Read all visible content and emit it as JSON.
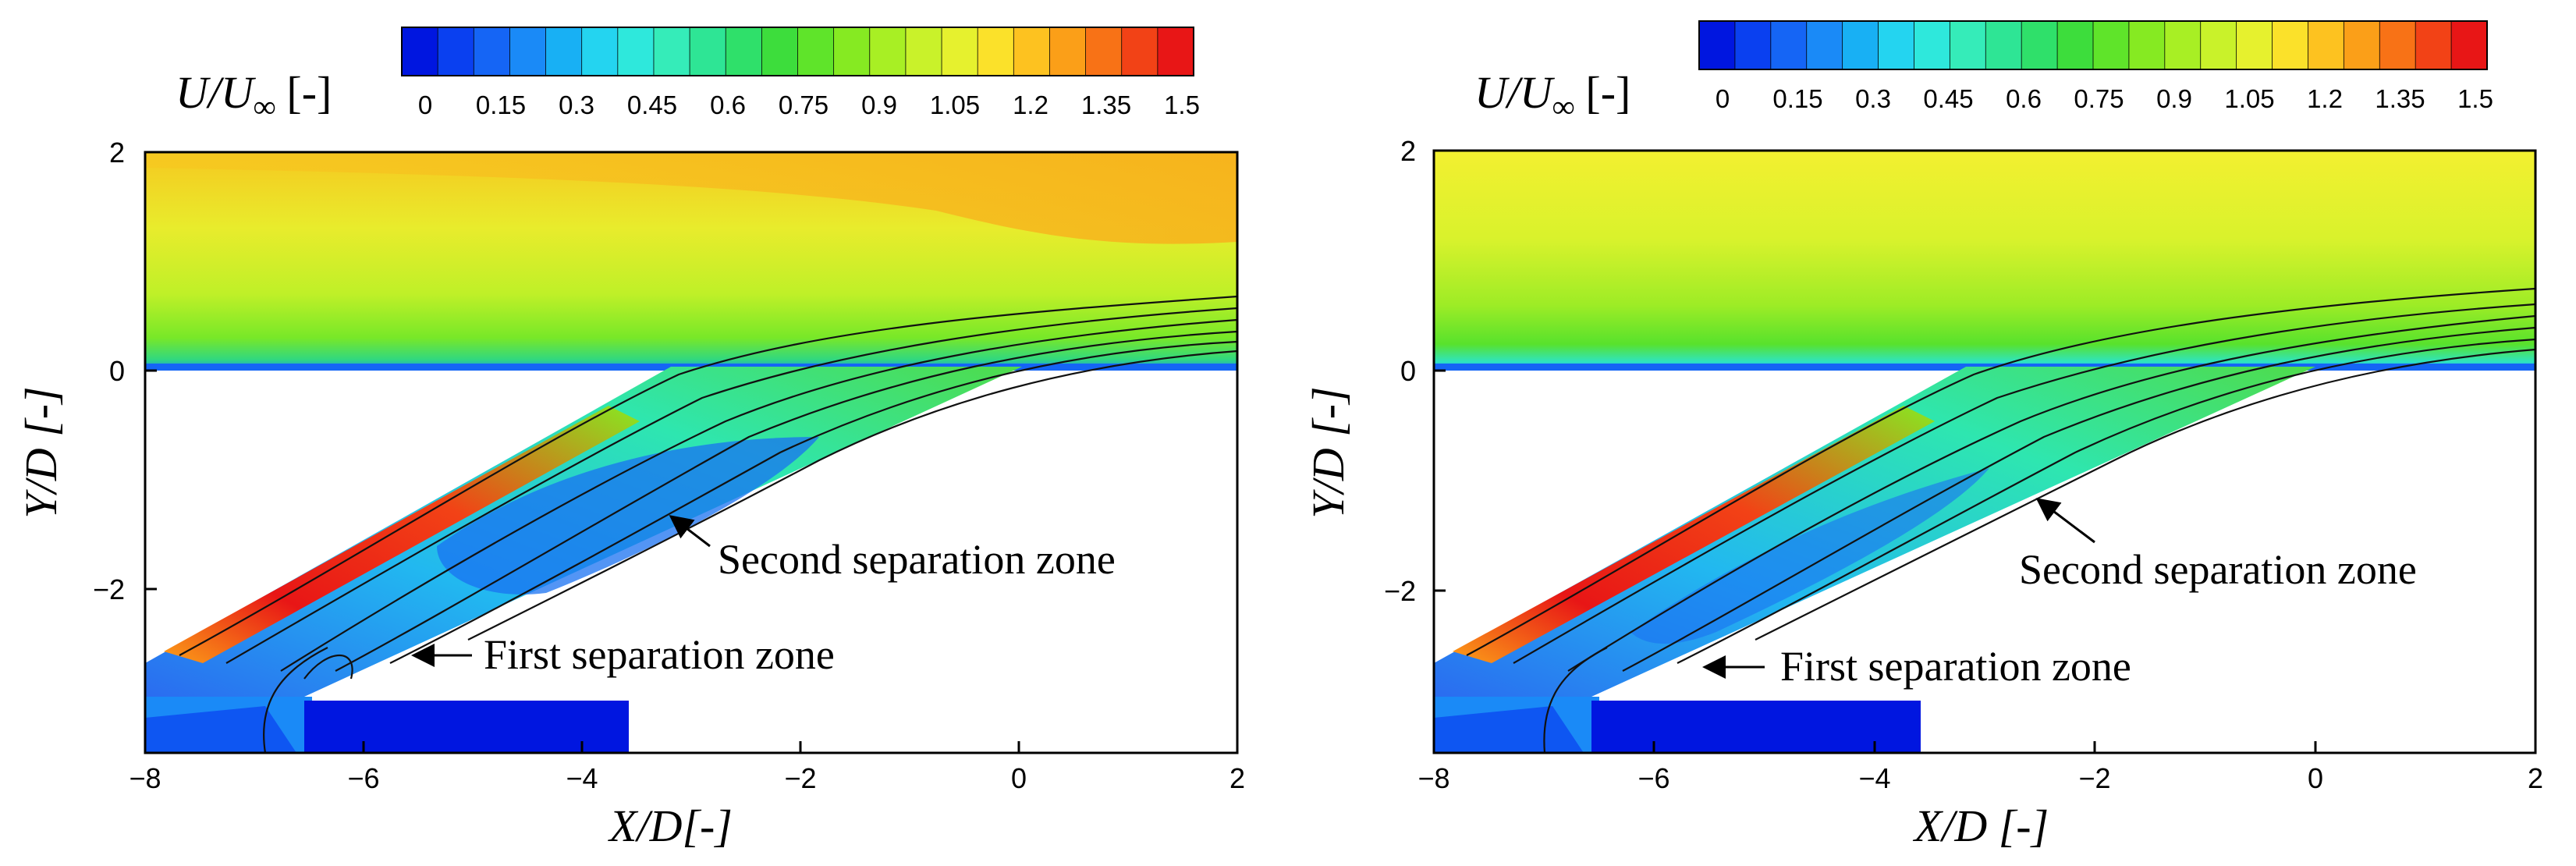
{
  "chart_data": [
    {
      "type": "heatmap",
      "title": "",
      "xlabel": "X/D[-]",
      "ylabel": "Y/D [-]",
      "xlim": [
        -8,
        2
      ],
      "ylim": [
        -3.5,
        2
      ],
      "x_ticks": [
        "−8",
        "−6",
        "−4",
        "−2",
        "0",
        "2"
      ],
      "y_ticks": [
        "2",
        "0",
        "−2"
      ],
      "colorbar": {
        "label_main": "U/U",
        "label_sub": "∞",
        "label_unit": "[-]",
        "range": [
          0,
          1.5
        ],
        "ticks": [
          "0",
          "0.15",
          "0.3",
          "0.45",
          "0.6",
          "0.75",
          "0.9",
          "1.05",
          "1.2",
          "1.35",
          "1.5"
        ],
        "colors": [
          "#0016e0",
          "#0a40f0",
          "#1565f5",
          "#1a8af7",
          "#18b0f4",
          "#24d4f0",
          "#2ee8dc",
          "#35ecb9",
          "#2ee595",
          "#2fe06a",
          "#3ddd3c",
          "#5fe42a",
          "#86ea22",
          "#a8ef24",
          "#c9f22a",
          "#e6f12e",
          "#fbe12a",
          "#fdc220",
          "#fb9f18",
          "#f87216",
          "#f24216",
          "#e81616"
        ]
      },
      "annotations": [
        {
          "text": "First separation zone"
        },
        {
          "text": "Second separation zone"
        }
      ]
    },
    {
      "type": "heatmap",
      "title": "",
      "xlabel": "X/D [-]",
      "ylabel": "Y/D [-]",
      "xlim": [
        -8,
        2
      ],
      "ylim": [
        -3.5,
        2
      ],
      "x_ticks": [
        "−8",
        "−6",
        "−4",
        "−2",
        "0",
        "2"
      ],
      "y_ticks": [
        "2",
        "0",
        "−2"
      ],
      "colorbar": {
        "label_main": "U/U",
        "label_sub": "∞",
        "label_unit": "[-]",
        "range": [
          0,
          1.5
        ],
        "ticks": [
          "0",
          "0.15",
          "0.3",
          "0.45",
          "0.6",
          "0.75",
          "0.9",
          "1.05",
          "1.2",
          "1.35",
          "1.5"
        ],
        "colors": [
          "#0016e0",
          "#0a40f0",
          "#1565f5",
          "#1a8af7",
          "#18b0f4",
          "#24d4f0",
          "#2ee8dc",
          "#35ecb9",
          "#2ee595",
          "#2fe06a",
          "#3ddd3c",
          "#5fe42a",
          "#86ea22",
          "#a8ef24",
          "#c9f22a",
          "#e6f12e",
          "#fbe12a",
          "#fdc220",
          "#fb9f18",
          "#f87216",
          "#f24216",
          "#e81616"
        ]
      },
      "annotations": [
        {
          "text": "First separation zone"
        },
        {
          "text": "Second separation zone"
        }
      ]
    }
  ]
}
